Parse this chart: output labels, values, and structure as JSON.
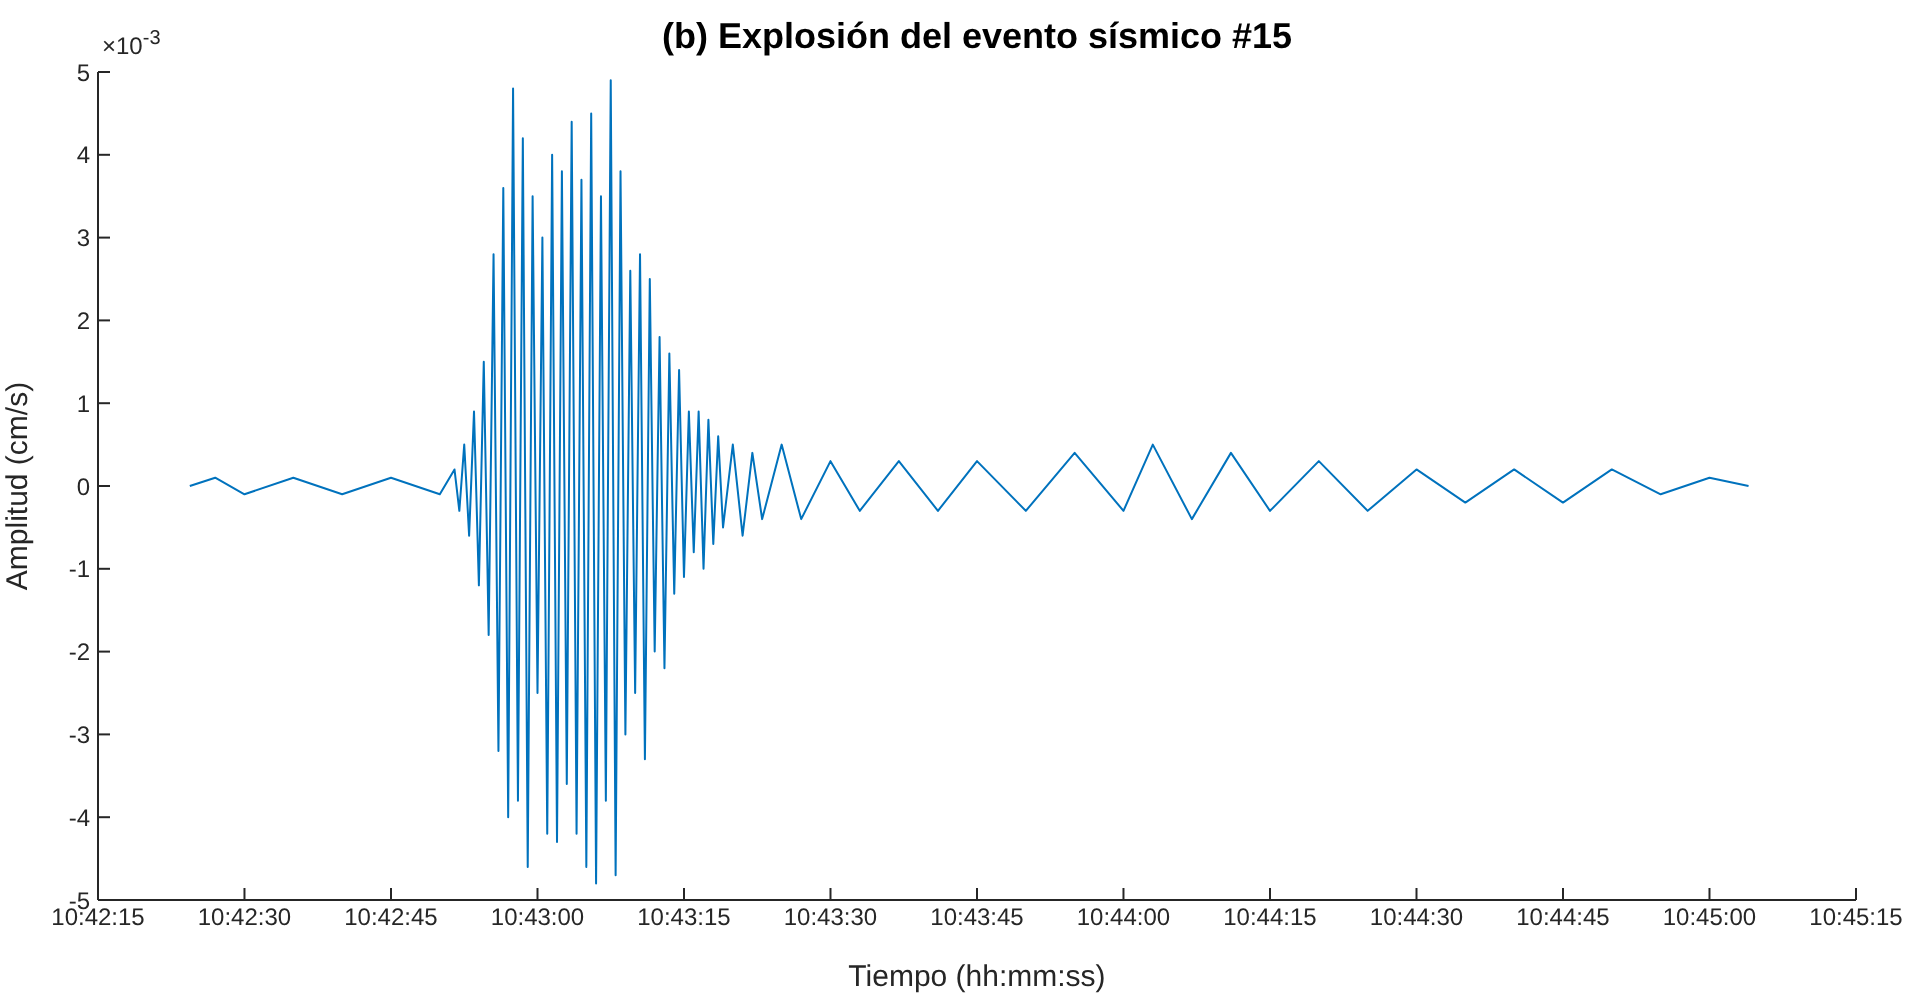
{
  "chart_data": {
    "type": "line",
    "title": "(b) Explosión del evento sísmico #15",
    "xlabel": "Tiempo (hh:mm:ss)",
    "ylabel": "Amplitud (cm/s)",
    "annotations": [
      "×10$^{-3}$"
    ],
    "xlim": [
      10.704167,
      10.754167
    ],
    "xticks": [
      {
        "value": 10.704167,
        "label": "10:42:15"
      },
      {
        "value": 10.708333,
        "label": "10:42:30"
      },
      {
        "value": 10.7125,
        "label": "10:42:45"
      },
      {
        "value": 10.716667,
        "label": "10:43:00"
      },
      {
        "value": 10.720833,
        "label": "10:43:15"
      },
      {
        "value": 10.725,
        "label": "10:43:30"
      },
      {
        "value": 10.729167,
        "label": "10:43:45"
      },
      {
        "value": 10.733333,
        "label": "10:44:00"
      },
      {
        "value": 10.7375,
        "label": "10:44:15"
      },
      {
        "value": 10.741667,
        "label": "10:44:30"
      },
      {
        "value": 10.745833,
        "label": "10:44:45"
      },
      {
        "value": 10.75,
        "label": "10:45:00"
      },
      {
        "value": 10.754167,
        "label": "10:45:15"
      }
    ],
    "ylim": [
      -5,
      5
    ],
    "yticks": [
      -5,
      -4,
      -3,
      -2,
      -1,
      0,
      1,
      2,
      3,
      4,
      5
    ],
    "grid": false,
    "legend": false,
    "marker": "none",
    "line_style": "solid",
    "series": [
      {
        "color": "#0072bd",
        "x": [
          10.706778,
          10.7075,
          10.708333,
          10.709722,
          10.711111,
          10.7125,
          10.713889,
          10.714306,
          10.714444,
          10.714583,
          10.714722,
          10.714861,
          10.715,
          10.715139,
          10.715278,
          10.715417,
          10.715556,
          10.715694,
          10.715833,
          10.715972,
          10.716111,
          10.71625,
          10.716389,
          10.716528,
          10.716667,
          10.716806,
          10.716944,
          10.717083,
          10.717222,
          10.717361,
          10.7175,
          10.717639,
          10.717778,
          10.717917,
          10.718056,
          10.718194,
          10.718333,
          10.718472,
          10.718611,
          10.71875,
          10.718889,
          10.719028,
          10.719167,
          10.719306,
          10.719444,
          10.719583,
          10.719722,
          10.719861,
          10.72,
          10.720139,
          10.720278,
          10.720417,
          10.720556,
          10.720694,
          10.720833,
          10.720972,
          10.721111,
          10.72125,
          10.721389,
          10.721528,
          10.721667,
          10.721806,
          10.721944,
          10.722222,
          10.7225,
          10.722778,
          10.723056,
          10.723611,
          10.724167,
          10.725,
          10.725833,
          10.726944,
          10.728056,
          10.729167,
          10.730556,
          10.731944,
          10.733333,
          10.734167,
          10.735278,
          10.736389,
          10.7375,
          10.738889,
          10.740278,
          10.741667,
          10.743056,
          10.744444,
          10.745833,
          10.747222,
          10.748611,
          10.75,
          10.751111
        ],
        "values": [
          0,
          0.1,
          -0.1,
          0.1,
          -0.1,
          0.1,
          -0.1,
          0.2,
          -0.3,
          0.5,
          -0.6,
          0.9,
          -1.2,
          1.5,
          -1.8,
          2.8,
          -3.2,
          3.6,
          -4,
          4.8,
          -3.8,
          4.2,
          -4.6,
          3.5,
          -2.5,
          3,
          -4.2,
          4,
          -4.3,
          3.8,
          -3.6,
          4.4,
          -4.2,
          3.7,
          -4.6,
          4.5,
          -4.8,
          3.5,
          -3.8,
          4.9,
          -4.7,
          3.8,
          -3,
          2.6,
          -2.5,
          2.8,
          -3.3,
          2.5,
          -2,
          1.8,
          -2.2,
          1.6,
          -1.3,
          1.4,
          -1.1,
          0.9,
          -0.8,
          0.9,
          -1,
          0.8,
          -0.7,
          0.6,
          -0.5,
          0.5,
          -0.6,
          0.4,
          -0.4,
          0.5,
          -0.4,
          0.3,
          -0.3,
          0.3,
          -0.3,
          0.3,
          -0.3,
          0.4,
          -0.3,
          0.5,
          -0.4,
          0.4,
          -0.3,
          0.3,
          -0.3,
          0.2,
          -0.2,
          0.2,
          -0.2,
          0.2,
          -0.1,
          0.1,
          0
        ]
      }
    ]
  }
}
